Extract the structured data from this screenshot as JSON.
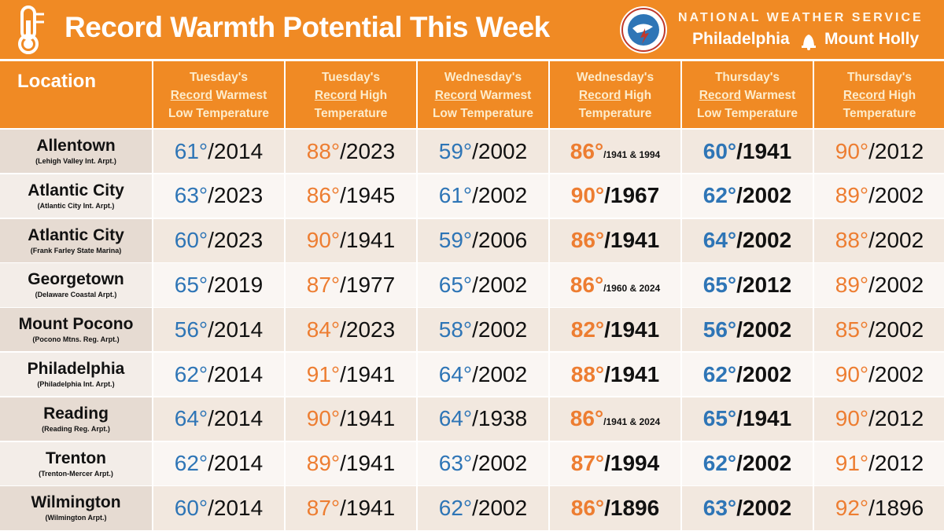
{
  "header": {
    "title": "Record Warmth Potential This Week",
    "agency": "NATIONAL WEATHER SERVICE",
    "office_a": "Philadelphia",
    "office_b": "Mount Holly"
  },
  "table": {
    "location_header": "Location",
    "columns": [
      {
        "day": "Tuesday's",
        "record": "Record",
        "kind": " Warmest",
        "tail": "Low Temperature"
      },
      {
        "day": "Tuesday's",
        "record": "Record",
        "kind": " High",
        "tail": "Temperature"
      },
      {
        "day": "Wednesday's",
        "record": "Record",
        "kind": " Warmest",
        "tail": "Low Temperature"
      },
      {
        "day": "Wednesday's",
        "record": "Record",
        "kind": " High",
        "tail": "Temperature"
      },
      {
        "day": "Thursday's",
        "record": "Record",
        "kind": " Warmest",
        "tail": "Low Temperature"
      },
      {
        "day": "Thursday's",
        "record": "Record",
        "kind": " High",
        "tail": "Temperature"
      }
    ],
    "rows": [
      {
        "location": "Allentown",
        "site": "(Lehigh Valley Int. Arpt.)",
        "cells": [
          [
            "61°",
            "/2014"
          ],
          [
            "88°",
            "/2023"
          ],
          [
            "59°",
            "/2002"
          ],
          [
            "86°",
            "/1941 & 1994"
          ],
          [
            "60°",
            "/1941"
          ],
          [
            "90°",
            "/2012"
          ]
        ]
      },
      {
        "location": "Atlantic City",
        "site": "(Atlantic City Int. Arpt.)",
        "cells": [
          [
            "63°",
            "/2023"
          ],
          [
            "86°",
            "/1945"
          ],
          [
            "61°",
            "/2002"
          ],
          [
            "90°",
            "/1967"
          ],
          [
            "62°",
            "/2002"
          ],
          [
            "89°",
            "/2002"
          ]
        ]
      },
      {
        "location": "Atlantic City",
        "site": "(Frank Farley State Marina)",
        "cells": [
          [
            "60°",
            "/2023"
          ],
          [
            "90°",
            "/1941"
          ],
          [
            "59°",
            "/2006"
          ],
          [
            "86°",
            "/1941"
          ],
          [
            "64°",
            "/2002"
          ],
          [
            "88°",
            "/2002"
          ]
        ]
      },
      {
        "location": "Georgetown",
        "site": "(Delaware Coastal Arpt.)",
        "cells": [
          [
            "65°",
            "/2019"
          ],
          [
            "87°",
            "/1977"
          ],
          [
            "65°",
            "/2002"
          ],
          [
            "86°",
            "/1960 & 2024"
          ],
          [
            "65°",
            "/2012"
          ],
          [
            "89°",
            "/2002"
          ]
        ]
      },
      {
        "location": "Mount Pocono",
        "site": "(Pocono Mtns. Reg. Arpt.)",
        "cells": [
          [
            "56°",
            "/2014"
          ],
          [
            "84°",
            "/2023"
          ],
          [
            "58°",
            "/2002"
          ],
          [
            "82°",
            "/1941"
          ],
          [
            "56°",
            "/2002"
          ],
          [
            "85°",
            "/2002"
          ]
        ]
      },
      {
        "location": "Philadelphia",
        "site": "(Philadelphia Int. Arpt.)",
        "cells": [
          [
            "62°",
            "/2014"
          ],
          [
            "91°",
            "/1941"
          ],
          [
            "64°",
            "/2002"
          ],
          [
            "88°",
            "/1941"
          ],
          [
            "62°",
            "/2002"
          ],
          [
            "90°",
            "/2002"
          ]
        ]
      },
      {
        "location": "Reading",
        "site": "(Reading Reg. Arpt.)",
        "cells": [
          [
            "64°",
            "/2014"
          ],
          [
            "90°",
            "/1941"
          ],
          [
            "64°",
            "/1938"
          ],
          [
            "86°",
            "/1941 & 2024"
          ],
          [
            "65°",
            "/1941"
          ],
          [
            "90°",
            "/2012"
          ]
        ]
      },
      {
        "location": "Trenton",
        "site": "(Trenton-Mercer Arpt.)",
        "cells": [
          [
            "62°",
            "/2014"
          ],
          [
            "89°",
            "/1941"
          ],
          [
            "63°",
            "/2002"
          ],
          [
            "87°",
            "/1994"
          ],
          [
            "62°",
            "/2002"
          ],
          [
            "91°",
            "/2012"
          ]
        ]
      },
      {
        "location": "Wilmington",
        "site": "(Wilmington Arpt.)",
        "cells": [
          [
            "60°",
            "/2014"
          ],
          [
            "87°",
            "/1941"
          ],
          [
            "62°",
            "/2002"
          ],
          [
            "86°",
            "/1896"
          ],
          [
            "63°",
            "/2002"
          ],
          [
            "92°",
            "/1896"
          ]
        ]
      }
    ]
  }
}
